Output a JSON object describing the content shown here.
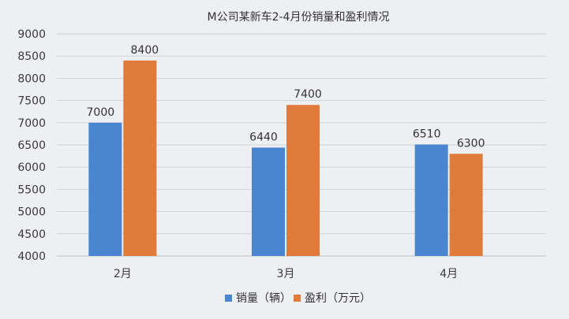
{
  "chart_data": {
    "type": "bar",
    "title": "M公司某新车2-4月份销量和盈利情况",
    "categories": [
      "2月",
      "3月",
      "4月"
    ],
    "series": [
      {
        "name": "销量（辆）",
        "values": [
          7000,
          6440,
          6510
        ],
        "color": "#4a86cf"
      },
      {
        "name": "盈利（万元）",
        "values": [
          8400,
          7400,
          6300
        ],
        "color": "#e17b3b"
      }
    ],
    "ylim": [
      4000,
      9000
    ],
    "yticks": [
      4000,
      4500,
      5000,
      5500,
      6000,
      6500,
      7000,
      7500,
      8000,
      8500,
      9000
    ],
    "data_labels": true,
    "grid": true,
    "legend_position": "bottom-center"
  }
}
